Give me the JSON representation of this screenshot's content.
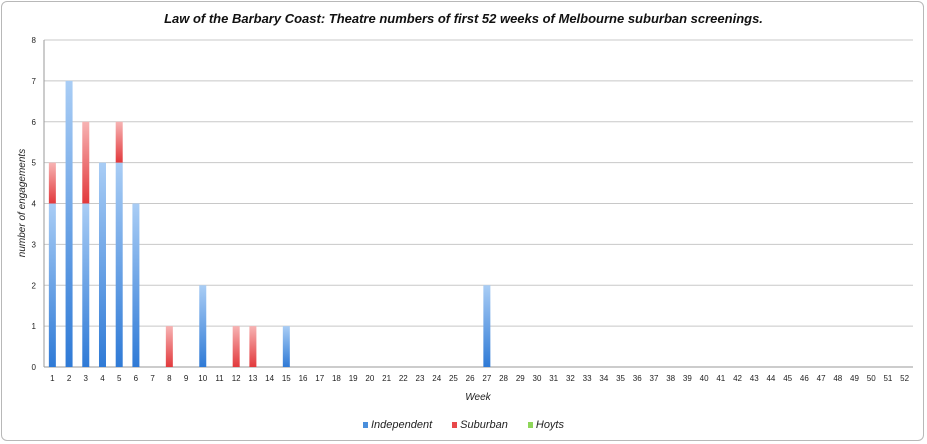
{
  "chart_data": {
    "type": "bar",
    "stacked": true,
    "title": "Law of the Barbary Coast: Theatre numbers of first 52 weeks of Melbourne suburban screenings.",
    "xlabel": "Week",
    "ylabel": "number of engagements",
    "ylim": [
      0,
      8
    ],
    "yticks": [
      0,
      1,
      2,
      3,
      4,
      5,
      6,
      7,
      8
    ],
    "grid": true,
    "legend_position": "bottom",
    "categories": [
      "1",
      "2",
      "3",
      "4",
      "5",
      "6",
      "7",
      "8",
      "9",
      "10",
      "11",
      "12",
      "13",
      "14",
      "15",
      "16",
      "17",
      "18",
      "19",
      "20",
      "21",
      "22",
      "23",
      "24",
      "25",
      "26",
      "27",
      "28",
      "29",
      "30",
      "31",
      "32",
      "33",
      "34",
      "35",
      "36",
      "37",
      "38",
      "39",
      "40",
      "41",
      "42",
      "43",
      "44",
      "45",
      "46",
      "47",
      "48",
      "49",
      "50",
      "51",
      "52"
    ],
    "series": [
      {
        "name": "Independent",
        "color": "#4a8fdc",
        "values": [
          4,
          7,
          4,
          5,
          5,
          4,
          0,
          0,
          0,
          2,
          0,
          0,
          0,
          0,
          1,
          0,
          0,
          0,
          0,
          0,
          0,
          0,
          0,
          0,
          0,
          0,
          2,
          0,
          0,
          0,
          0,
          0,
          0,
          0,
          0,
          0,
          0,
          0,
          0,
          0,
          0,
          0,
          0,
          0,
          0,
          0,
          0,
          0,
          0,
          0,
          0,
          0
        ]
      },
      {
        "name": "Suburban",
        "color": "#e8484a",
        "values": [
          1,
          0,
          2,
          0,
          1,
          0,
          0,
          1,
          0,
          0,
          0,
          1,
          1,
          0,
          0,
          0,
          0,
          0,
          0,
          0,
          0,
          0,
          0,
          0,
          0,
          0,
          0,
          0,
          0,
          0,
          0,
          0,
          0,
          0,
          0,
          0,
          0,
          0,
          0,
          0,
          0,
          0,
          0,
          0,
          0,
          0,
          0,
          0,
          0,
          0,
          0,
          0
        ]
      },
      {
        "name": "Hoyts",
        "color": "#8ed65a",
        "values": [
          0,
          0,
          0,
          0,
          0,
          0,
          0,
          0,
          0,
          0,
          0,
          0,
          0,
          0,
          0,
          0,
          0,
          0,
          0,
          0,
          0,
          0,
          0,
          0,
          0,
          0,
          0,
          0,
          0,
          0,
          0,
          0,
          0,
          0,
          0,
          0,
          0,
          0,
          0,
          0,
          0,
          0,
          0,
          0,
          0,
          0,
          0,
          0,
          0,
          0,
          0,
          0
        ]
      }
    ]
  }
}
